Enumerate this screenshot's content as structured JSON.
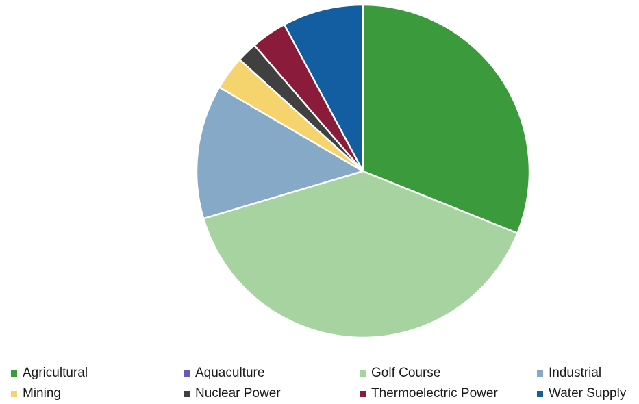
{
  "chart_data": {
    "type": "pie",
    "title": "",
    "start_angle_deg": 0,
    "direction": "clockwise",
    "legend_position": "bottom",
    "slices": [
      {
        "label": "Agricultural",
        "value": 31.3,
        "color": "#3b9a3b"
      },
      {
        "label": "Aquaculture",
        "value": 0.0,
        "color": "#6b5bb8"
      },
      {
        "label": "Golf Course",
        "value": 39.6,
        "color": "#a6d3a0"
      },
      {
        "label": "Industrial",
        "value": 13.1,
        "color": "#86a9c8"
      },
      {
        "label": "Mining",
        "value": 3.3,
        "color": "#f5d36d"
      },
      {
        "label": "Nuclear Power",
        "value": 2.0,
        "color": "#404040"
      },
      {
        "label": "Thermoelectric Power",
        "value": 3.5,
        "color": "#8a1b3a"
      },
      {
        "label": "Water Supply",
        "value": 7.9,
        "color": "#135ea0"
      }
    ]
  }
}
